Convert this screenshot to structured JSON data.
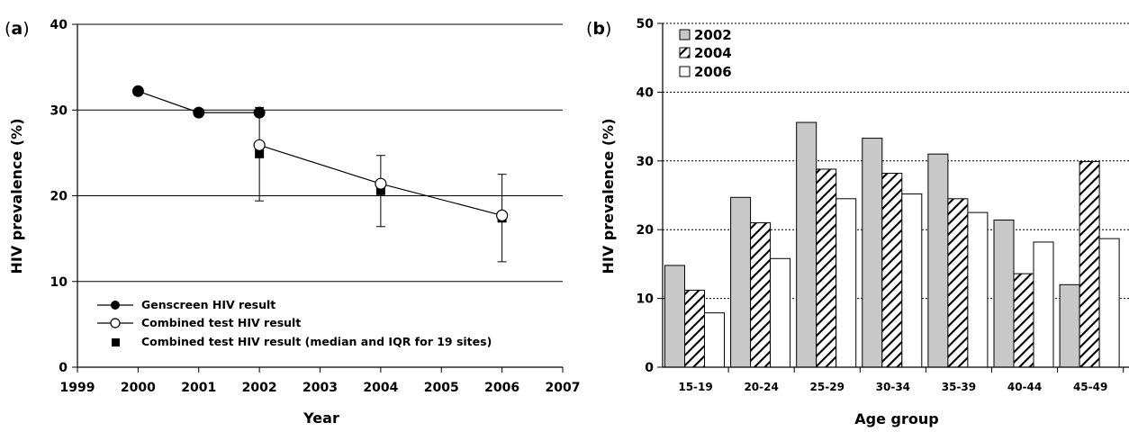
{
  "chart_data": [
    {
      "type": "line",
      "panel_label": "a",
      "xlabel": "Year",
      "ylabel": "HIV prevalence (%)",
      "xlim": [
        1999,
        2007
      ],
      "ylim": [
        0,
        40
      ],
      "x_ticks": [
        1999,
        2000,
        2001,
        2002,
        2003,
        2004,
        2005,
        2006,
        2007
      ],
      "y_ticks": [
        0,
        10,
        20,
        30,
        40
      ],
      "grid": "horizontal",
      "legend_position": "bottom-left",
      "series": [
        {
          "name": "Genscreen HIV result",
          "marker": "filled-circle",
          "color": "#000000",
          "points": [
            {
              "x": 2000,
              "y": 32.2
            },
            {
              "x": 2001,
              "y": 29.7
            },
            {
              "x": 2002,
              "y": 29.7
            }
          ]
        },
        {
          "name": "Combined test HIV result",
          "marker": "open-circle",
          "color": "#000000",
          "points": [
            {
              "x": 2002,
              "y": 25.9
            },
            {
              "x": 2004,
              "y": 21.4
            },
            {
              "x": 2006,
              "y": 17.7
            }
          ]
        },
        {
          "name": "Combined test HIV result (median and IQR for 19 sites)",
          "marker": "filled-square",
          "color": "#000000",
          "points": [
            {
              "x": 2002,
              "y": 24.9,
              "low": 19.4,
              "high": 30.3
            },
            {
              "x": 2004,
              "y": 20.6,
              "low": 16.4,
              "high": 24.7
            },
            {
              "x": 2006,
              "y": 17.4,
              "low": 12.3,
              "high": 22.5
            }
          ]
        }
      ]
    },
    {
      "type": "bar",
      "panel_label": "b",
      "xlabel": "Age group",
      "ylabel": "HIV prevalence (%)",
      "ylim": [
        0,
        50
      ],
      "y_ticks": [
        0,
        10,
        20,
        30,
        40,
        50
      ],
      "grid": "horizontal-dotted",
      "legend_position": "top-left",
      "categories": [
        "15-19",
        "20-24",
        "25-29",
        "30-34",
        "35-39",
        "40-44",
        "45-49"
      ],
      "series": [
        {
          "name": "2002",
          "fill": "#c8c8c8",
          "pattern": "solid",
          "values": [
            14.8,
            24.7,
            35.6,
            33.3,
            31.0,
            21.4,
            12.0
          ]
        },
        {
          "name": "2004",
          "fill": "#ffffff",
          "pattern": "diagonal-hatch",
          "values": [
            11.2,
            21.0,
            28.8,
            28.2,
            24.5,
            13.6,
            29.9
          ]
        },
        {
          "name": "2006",
          "fill": "#ffffff",
          "pattern": "solid",
          "values": [
            7.9,
            15.8,
            24.5,
            25.2,
            22.5,
            18.2,
            18.7
          ]
        }
      ]
    }
  ]
}
